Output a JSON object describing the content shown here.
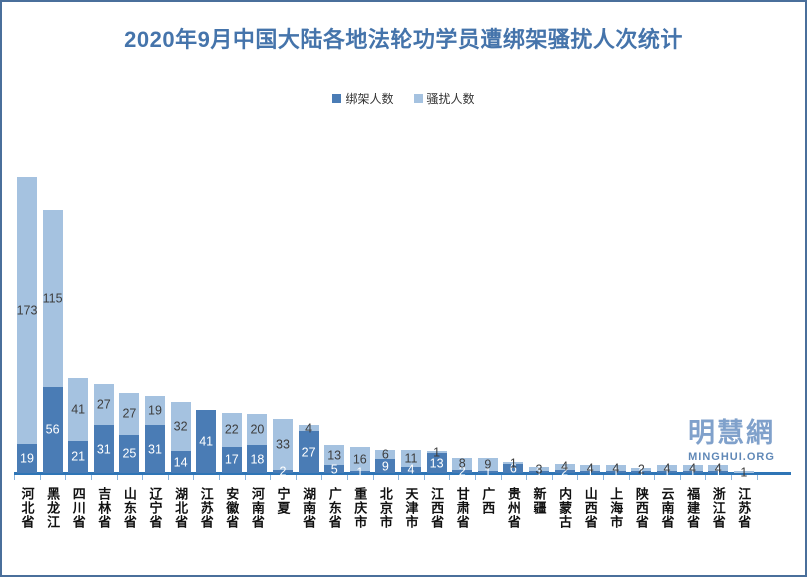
{
  "watermark": {
    "cn": "明慧網",
    "en": "MINGHUI.ORG"
  },
  "chart_data": {
    "type": "bar",
    "stacked": true,
    "title": "2020年9月中国大陆各地法轮功学员遭绑架骚扰人次统计",
    "title_color": "#4574ab",
    "legend_position": "top",
    "y_axis_visible": false,
    "grid": false,
    "axis_line_color": "#2e75b6",
    "ylim": [
      0,
      200
    ],
    "categories": [
      "河北省",
      "黑龙江",
      "四川省",
      "吉林省",
      "山东省",
      "辽宁省",
      "湖北省",
      "江苏省",
      "安徽省",
      "河南省",
      "宁夏",
      "湖南省",
      "广东省",
      "重庆市",
      "北京市",
      "天津市",
      "江西省",
      "甘肃省",
      "广西",
      "贵州省",
      "新疆",
      "内蒙古",
      "山西省",
      "上海市",
      "陕西省",
      "云南省",
      "福建省",
      "浙江省",
      "江苏省"
    ],
    "series": [
      {
        "name": "绑架人数",
        "color": "#4a7cb5",
        "label_color": "#ffffff",
        "values": [
          19,
          56,
          21,
          31,
          25,
          31,
          14,
          41,
          17,
          18,
          2,
          27,
          5,
          1,
          9,
          4,
          13,
          2,
          1,
          6,
          1,
          2,
          1,
          1,
          1,
          1,
          1,
          1,
          0
        ]
      },
      {
        "name": "骚扰人数",
        "color": "#a5c2e0",
        "label_color": "#3d3d3d",
        "values": [
          173,
          115,
          41,
          27,
          27,
          19,
          32,
          0,
          22,
          20,
          33,
          4,
          13,
          16,
          6,
          11,
          1,
          8,
          9,
          1,
          3,
          4,
          4,
          4,
          2,
          4,
          4,
          4,
          1
        ]
      }
    ]
  }
}
